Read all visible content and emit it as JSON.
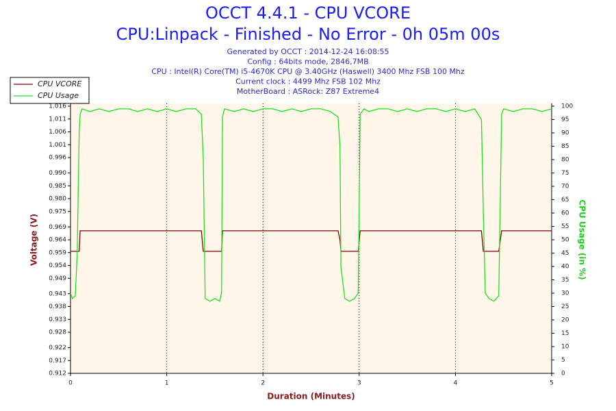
{
  "chart_data": {
    "type": "line",
    "title": "OCCT 4.4.1 - CPU VCORE",
    "subtitle": "CPU:Linpack - Finished - No Error - 0h 05m 00s",
    "info_lines": [
      "Generated by OCCT : 2014-12-24 16:08:55",
      "Config : 64bits mode, 2846,7MB",
      "CPU : Intel(R) Core(TM) i5-4670K CPU @ 3.40GHz (Haswell) 3400 Mhz FSB 100 Mhz",
      "Current clock : 4499 Mhz FSB 102 Mhz",
      "MotherBoard : ASRock: Z87 Extreme4"
    ],
    "x_label": "Duration (Minutes)",
    "y_label": "Voltage (V)",
    "y2_label": "CPU Usage (in %)",
    "x": [
      0,
      0.02,
      0.05,
      0.07,
      0.09,
      0.1,
      0.12,
      0.2,
      0.3,
      0.4,
      0.5,
      0.6,
      0.7,
      0.8,
      0.9,
      1.0,
      1.1,
      1.2,
      1.3,
      1.36,
      1.38,
      1.4,
      1.45,
      1.5,
      1.55,
      1.57,
      1.58,
      1.6,
      1.7,
      1.8,
      1.9,
      2.0,
      2.1,
      2.2,
      2.3,
      2.4,
      2.5,
      2.6,
      2.7,
      2.78,
      2.8,
      2.81,
      2.85,
      2.9,
      2.95,
      2.99,
      3.01,
      3.05,
      3.1,
      3.2,
      3.3,
      3.4,
      3.5,
      3.6,
      3.7,
      3.8,
      3.9,
      4.0,
      4.1,
      4.2,
      4.27,
      4.29,
      4.31,
      4.35,
      4.4,
      4.45,
      4.48,
      4.5,
      4.6,
      4.7,
      4.8,
      4.9,
      5.0
    ],
    "series": [
      {
        "name": "CPU VCORE",
        "color": "#800000",
        "values": [
          0.9595,
          0.9595,
          0.9595,
          0.9595,
          0.9595,
          0.9675,
          0.9675,
          0.9675,
          0.9675,
          0.9675,
          0.9675,
          0.9675,
          0.9675,
          0.9675,
          0.9675,
          0.9675,
          0.9675,
          0.9675,
          0.9675,
          0.9675,
          0.9595,
          0.9595,
          0.9595,
          0.9595,
          0.9595,
          0.9595,
          0.9675,
          0.9675,
          0.9675,
          0.9675,
          0.9675,
          0.9675,
          0.9675,
          0.9675,
          0.9675,
          0.9675,
          0.9675,
          0.9675,
          0.9675,
          0.9675,
          0.964,
          0.9595,
          0.9595,
          0.9595,
          0.9595,
          0.9595,
          0.9675,
          0.9675,
          0.9675,
          0.9675,
          0.9675,
          0.9675,
          0.9675,
          0.9675,
          0.9675,
          0.9675,
          0.9675,
          0.9675,
          0.9675,
          0.9675,
          0.9675,
          0.9595,
          0.9595,
          0.9595,
          0.9595,
          0.9595,
          0.9675,
          0.9675,
          0.9675,
          0.9675,
          0.9675,
          0.9675,
          0.9675
        ]
      },
      {
        "name": "CPU Usage",
        "color": "#22dd22",
        "axis": "y2",
        "values": [
          30,
          28,
          29,
          45,
          90,
          97,
          99,
          98,
          99,
          98,
          99,
          99,
          98,
          99,
          98,
          99,
          98,
          99,
          99,
          97,
          80,
          28,
          27,
          28,
          27,
          30,
          96,
          99,
          98,
          99,
          98,
          99,
          99,
          98,
          99,
          98,
          99,
          99,
          98,
          96,
          85,
          40,
          28,
          27,
          28,
          30,
          97,
          99,
          98,
          99,
          99,
          98,
          99,
          98,
          99,
          99,
          98,
          99,
          98,
          99,
          95,
          60,
          30,
          28,
          27,
          29,
          97,
          99,
          98,
          99,
          99,
          98,
          99
        ]
      }
    ],
    "xlim": [
      0,
      5
    ],
    "xticks": [
      0,
      1,
      2,
      3,
      4,
      5
    ],
    "ylim": [
      0.912,
      1.016
    ],
    "yticks": [
      0.912,
      0.917,
      0.922,
      0.928,
      0.933,
      0.938,
      0.943,
      0.949,
      0.954,
      0.959,
      0.964,
      0.969,
      0.975,
      {
        "value": 0.98,
        "label": "0.980"
      },
      0.985,
      {
        "value": 0.99,
        "label": "0.990"
      },
      0.996,
      1.001,
      1.006,
      1.011,
      1.016
    ],
    "y2lim": [
      0,
      100
    ],
    "y2ticks": [
      0,
      5,
      10,
      15,
      20,
      25,
      30,
      35,
      40,
      45,
      50,
      55,
      60,
      65,
      70,
      75,
      80,
      85,
      90,
      95,
      100
    ],
    "grid": "x",
    "legend": "top-left",
    "plot_background": "#fdf6e9"
  }
}
